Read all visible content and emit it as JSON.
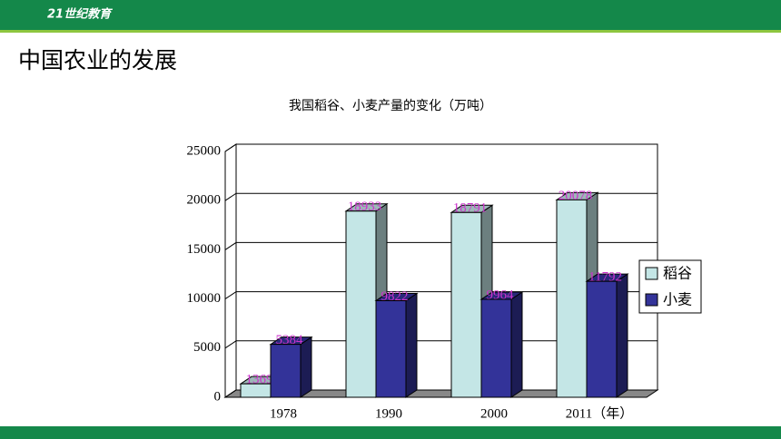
{
  "header": {
    "logo": "21世纪教育",
    "title": "中国农业的发展"
  },
  "chart_data": {
    "type": "bar3d",
    "title": "我国稻谷、小麦产量的变化（万吨）",
    "categories": [
      "1978",
      "1990",
      "2000",
      "2011（年）"
    ],
    "series": [
      {
        "name": "稻谷",
        "color": "#c4e6e6",
        "values": [
          1369,
          18933,
          18791,
          20078
        ]
      },
      {
        "name": "小麦",
        "color": "#333399",
        "values": [
          5384,
          9822,
          9964,
          11792
        ]
      }
    ],
    "ylim": [
      0,
      25000
    ],
    "yticks": [
      0,
      5000,
      10000,
      15000,
      20000,
      25000
    ],
    "grid": true,
    "legend": "right",
    "label_color": "#cc33cc"
  }
}
